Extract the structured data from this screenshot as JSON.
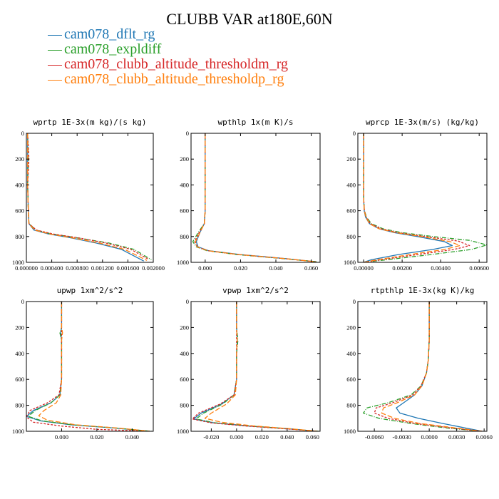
{
  "title": "CLUBB VAR at180E,60N",
  "legend": [
    {
      "name": "cam078_dflt_rg",
      "color": "#1f77b4"
    },
    {
      "name": "cam078_expldiff",
      "color": "#2ca02c"
    },
    {
      "name": "cam078_clubb_altitude_thresholdm_rg",
      "color": "#d62728"
    },
    {
      "name": "cam078_clubb_altitude_thresholdp_rg",
      "color": "#ff7f0e"
    }
  ],
  "chart_data": [
    {
      "type": "line",
      "title": "wprtp  1E-3x(m kg)/(s kg)",
      "xlim": [
        0.0,
        0.002
      ],
      "ylim": [
        1000,
        0
      ],
      "x_ticks": [
        0.0,
        0.0004,
        0.0008,
        0.0012,
        0.0016,
        0.002
      ],
      "x_tick_labels": [
        "0.000000",
        "0.000400",
        "0.000800",
        "0.001200",
        "0.001600",
        "0.002000"
      ],
      "y_ticks": [
        0,
        200,
        400,
        600,
        800,
        1000
      ],
      "y_tick_labels": [
        "0",
        "200",
        "400",
        "600",
        "800",
        "1000"
      ],
      "series": [
        {
          "name": "cam078_dflt_rg",
          "style": "solid",
          "x": [
            2e-05,
            2e-05,
            2e-05,
            3e-05,
            4e-05,
            0.00012,
            0.00035,
            0.0007,
            0.0011,
            0.0015,
            0.00185
          ],
          "y": [
            0,
            200,
            400,
            600,
            700,
            750,
            780,
            810,
            850,
            900,
            990
          ]
        },
        {
          "name": "cam078_expldiff",
          "style": "dashdot",
          "x": [
            2e-05,
            3e-05,
            2e-05,
            3e-05,
            4e-05,
            0.00015,
            0.0004,
            0.0008,
            0.0013,
            0.0017,
            0.00197
          ],
          "y": [
            0,
            200,
            400,
            600,
            700,
            750,
            780,
            810,
            850,
            900,
            980
          ]
        },
        {
          "name": "cam078_clubb_altitude_thresholdm_rg",
          "style": "dashed",
          "x": [
            2e-05,
            4e-05,
            2e-05,
            3e-05,
            4e-05,
            0.00016,
            0.00042,
            0.00082,
            0.00125,
            0.00165,
            0.00192
          ],
          "y": [
            0,
            200,
            400,
            600,
            700,
            750,
            780,
            810,
            850,
            900,
            975
          ]
        },
        {
          "name": "cam078_clubb_altitude_thresholdp_rg",
          "style": "longdash",
          "x": [
            2e-05,
            2e-05,
            2e-05,
            3e-05,
            4e-05,
            0.00013,
            0.00037,
            0.00072,
            0.00115,
            0.00155,
            0.0019
          ],
          "y": [
            0,
            200,
            400,
            600,
            700,
            750,
            780,
            810,
            850,
            900,
            985
          ]
        }
      ]
    },
    {
      "type": "line",
      "title": "wpthlp  1x(m K)/s",
      "xlim": [
        -0.008,
        0.065
      ],
      "ylim": [
        1000,
        0
      ],
      "x_ticks": [
        0.0,
        0.02,
        0.04,
        0.06
      ],
      "x_tick_labels": [
        "0.000",
        "0.020",
        "0.040",
        "0.060"
      ],
      "y_ticks": [
        0,
        200,
        400,
        600,
        800,
        1000
      ],
      "y_tick_labels": [
        "0",
        "200",
        "400",
        "600",
        "800",
        "1000"
      ],
      "series": [
        {
          "name": "cam078_dflt_rg",
          "style": "solid",
          "x": [
            0.0,
            0.0,
            0.0,
            0.0,
            -0.0005,
            -0.003,
            -0.005,
            -0.004,
            0.002,
            0.02,
            0.045,
            0.062
          ],
          "y": [
            0,
            200,
            400,
            600,
            700,
            770,
            840,
            880,
            910,
            940,
            970,
            995
          ]
        },
        {
          "name": "cam078_expldiff",
          "style": "dashdot",
          "x": [
            0.0,
            0.0,
            0.0,
            0.0,
            -0.0005,
            -0.004,
            -0.007,
            -0.005,
            0.001,
            0.018,
            0.043,
            0.063
          ],
          "y": [
            0,
            200,
            400,
            600,
            700,
            770,
            840,
            880,
            910,
            940,
            970,
            995
          ]
        },
        {
          "name": "cam078_clubb_altitude_thresholdm_rg",
          "style": "dashed",
          "x": [
            0.0,
            0.0,
            0.0,
            0.0,
            -0.0005,
            -0.0035,
            -0.006,
            -0.0045,
            0.0015,
            0.019,
            0.044,
            0.0625
          ],
          "y": [
            0,
            200,
            400,
            600,
            700,
            770,
            840,
            880,
            910,
            940,
            970,
            995
          ]
        },
        {
          "name": "cam078_clubb_altitude_thresholdp_rg",
          "style": "longdash",
          "x": [
            0.0,
            0.0,
            0.0,
            0.0,
            -0.0005,
            -0.003,
            -0.0055,
            -0.0045,
            0.0015,
            0.019,
            0.0445,
            0.062
          ],
          "y": [
            0,
            200,
            400,
            600,
            700,
            770,
            840,
            880,
            910,
            940,
            970,
            995
          ]
        }
      ]
    },
    {
      "type": "line",
      "title": "wprcp  1E-3x(m/s) (kg/kg)",
      "xlim": [
        -0.0003,
        0.0064
      ],
      "ylim": [
        1000,
        0
      ],
      "x_ticks": [
        0.0,
        0.002,
        0.004,
        0.006
      ],
      "x_tick_labels": [
        "0.00000",
        "0.00200",
        "0.00400",
        "0.00600"
      ],
      "y_ticks": [
        0,
        200,
        400,
        600,
        800,
        1000
      ],
      "y_tick_labels": [
        "0",
        "200",
        "400",
        "600",
        "800",
        "1000"
      ],
      "series": [
        {
          "name": "cam078_dflt_rg",
          "style": "solid",
          "x": [
            0.0,
            0.0,
            0.0,
            0.0,
            3e-05,
            0.0001,
            0.0003,
            0.0008,
            0.0016,
            0.0028,
            0.0042,
            0.0046,
            0.0036,
            0.0018,
            0.0004,
            0.0
          ],
          "y": [
            0,
            200,
            400,
            500,
            600,
            650,
            700,
            740,
            770,
            800,
            840,
            870,
            900,
            940,
            980,
            1000
          ]
        },
        {
          "name": "cam078_expldiff",
          "style": "dashdot",
          "x": [
            0.0,
            0.0,
            0.0,
            0.0,
            4e-05,
            0.00015,
            0.0004,
            0.001,
            0.002,
            0.0036,
            0.0055,
            0.0064,
            0.0056,
            0.0035,
            0.0012,
            0.0
          ],
          "y": [
            0,
            200,
            400,
            500,
            600,
            650,
            700,
            740,
            770,
            800,
            830,
            865,
            900,
            940,
            980,
            1000
          ]
        },
        {
          "name": "cam078_clubb_altitude_thresholdm_rg",
          "style": "dashed",
          "x": [
            0.0,
            0.0,
            0.0,
            0.0,
            4e-05,
            0.00013,
            0.00035,
            0.0009,
            0.0018,
            0.0032,
            0.0049,
            0.0055,
            0.0047,
            0.0028,
            0.0009,
            0.0
          ],
          "y": [
            0,
            200,
            400,
            500,
            600,
            650,
            700,
            740,
            770,
            800,
            835,
            870,
            900,
            940,
            980,
            1000
          ]
        },
        {
          "name": "cam078_clubb_altitude_thresholdp_rg",
          "style": "longdash",
          "x": [
            0.0,
            0.0,
            0.0,
            0.0,
            3e-05,
            0.00012,
            0.0003,
            0.0008,
            0.0017,
            0.003,
            0.0045,
            0.005,
            0.0042,
            0.0024,
            0.0007,
            0.0
          ],
          "y": [
            0,
            200,
            400,
            500,
            600,
            650,
            700,
            740,
            770,
            800,
            840,
            870,
            900,
            940,
            980,
            1000
          ]
        }
      ]
    },
    {
      "type": "line",
      "title": "upwp  1xm^2/s^2",
      "xlim": [
        -0.02,
        0.052
      ],
      "ylim": [
        1000,
        0
      ],
      "x_ticks": [
        0.0,
        0.02,
        0.04
      ],
      "x_tick_labels": [
        "0.000",
        "0.020",
        "0.040"
      ],
      "y_ticks": [
        0,
        200,
        400,
        600,
        800,
        1000
      ],
      "y_tick_labels": [
        "0",
        "200",
        "400",
        "600",
        "800",
        "1000"
      ],
      "series": [
        {
          "name": "cam078_dflt_rg",
          "style": "solid",
          "x": [
            0.0,
            0.0,
            -0.0005,
            0.0,
            0.0,
            -0.001,
            -0.006,
            -0.016,
            -0.02,
            -0.012,
            0.005,
            0.03,
            0.05
          ],
          "y": [
            0,
            200,
            240,
            300,
            600,
            720,
            780,
            840,
            885,
            920,
            950,
            975,
            1000
          ]
        },
        {
          "name": "cam078_expldiff",
          "style": "dashdot",
          "x": [
            0.0,
            0.0,
            -0.001,
            0.0,
            0.0,
            -0.001,
            -0.006,
            -0.015,
            -0.019,
            -0.011,
            0.006,
            0.031,
            0.051
          ],
          "y": [
            0,
            200,
            240,
            300,
            600,
            720,
            780,
            840,
            885,
            920,
            950,
            975,
            1000
          ]
        },
        {
          "name": "cam078_clubb_altitude_thresholdm_rg",
          "style": "dashed",
          "x": [
            0.0,
            0.0,
            0.0,
            0.0,
            0.0,
            -0.0015,
            -0.008,
            -0.018,
            -0.02,
            -0.016,
            0.0,
            0.02,
            0.05
          ],
          "y": [
            0,
            200,
            240,
            300,
            600,
            720,
            780,
            840,
            890,
            930,
            960,
            985,
            1000
          ]
        },
        {
          "name": "cam078_clubb_altitude_thresholdp_rg",
          "style": "longdash",
          "x": [
            0.0,
            0.0,
            0.0005,
            0.0,
            0.0,
            -0.0005,
            -0.003,
            -0.01,
            -0.013,
            -0.008,
            0.008,
            0.032,
            0.05
          ],
          "y": [
            0,
            200,
            240,
            300,
            600,
            720,
            780,
            840,
            880,
            915,
            950,
            975,
            1000
          ]
        }
      ]
    },
    {
      "type": "line",
      "title": "vpwp  1xm^2/s^2",
      "xlim": [
        -0.036,
        0.066
      ],
      "ylim": [
        1000,
        0
      ],
      "x_ticks": [
        -0.02,
        0.0,
        0.02,
        0.04,
        0.06
      ],
      "x_tick_labels": [
        "-0.020",
        "0.000",
        "0.020",
        "0.040",
        "0.060"
      ],
      "y_ticks": [
        0,
        200,
        400,
        600,
        800,
        1000
      ],
      "y_tick_labels": [
        "0",
        "200",
        "400",
        "600",
        "800",
        "1000"
      ],
      "series": [
        {
          "name": "cam078_dflt_rg",
          "style": "solid",
          "x": [
            0.0,
            0.0,
            0.0005,
            0.0,
            0.0,
            -0.002,
            -0.012,
            -0.028,
            -0.034,
            -0.018,
            0.01,
            0.04,
            0.064
          ],
          "y": [
            0,
            200,
            300,
            400,
            600,
            720,
            790,
            860,
            905,
            935,
            960,
            980,
            1000
          ]
        },
        {
          "name": "cam078_expldiff",
          "style": "dashdot",
          "x": [
            0.0,
            0.0,
            0.001,
            0.0,
            0.0,
            -0.002,
            -0.011,
            -0.026,
            -0.032,
            -0.017,
            0.011,
            0.041,
            0.065
          ],
          "y": [
            0,
            200,
            300,
            400,
            600,
            720,
            790,
            860,
            905,
            935,
            960,
            980,
            1000
          ]
        },
        {
          "name": "cam078_clubb_altitude_thresholdm_rg",
          "style": "dashed",
          "x": [
            0.0,
            0.0,
            0.0,
            0.0,
            0.0,
            -0.002,
            -0.013,
            -0.03,
            -0.035,
            -0.02,
            0.008,
            0.038,
            0.064
          ],
          "y": [
            0,
            200,
            300,
            400,
            600,
            720,
            790,
            860,
            905,
            935,
            960,
            980,
            1000
          ]
        },
        {
          "name": "cam078_clubb_altitude_thresholdp_rg",
          "style": "longdash",
          "x": [
            0.0,
            0.0,
            0.0005,
            0.0,
            0.0,
            -0.001,
            -0.008,
            -0.02,
            -0.025,
            -0.012,
            0.013,
            0.042,
            0.064
          ],
          "y": [
            0,
            200,
            300,
            400,
            600,
            720,
            790,
            860,
            900,
            930,
            958,
            980,
            1000
          ]
        }
      ]
    },
    {
      "type": "line",
      "title": "rtpthlp  1E-3x(kg K)/kg",
      "xlim": [
        -0.0078,
        0.0063
      ],
      "ylim": [
        1000,
        0
      ],
      "x_ticks": [
        -0.006,
        -0.003,
        0.0,
        0.003,
        0.006
      ],
      "x_tick_labels": [
        "-0.0060",
        "-0.0030",
        "0.0000",
        "0.0030",
        "0.0060"
      ],
      "y_ticks": [
        0,
        200,
        400,
        600,
        800,
        1000
      ],
      "y_tick_labels": [
        "0",
        "200",
        "400",
        "600",
        "800",
        "1000"
      ],
      "series": [
        {
          "name": "cam078_dflt_rg",
          "style": "solid",
          "x": [
            0.0,
            0.0,
            -0.0001,
            -0.0003,
            -0.0008,
            -0.0016,
            -0.0028,
            -0.0036,
            -0.0032,
            -0.0012,
            0.0015,
            0.004,
            0.0058
          ],
          "y": [
            0,
            300,
            450,
            550,
            650,
            720,
            780,
            820,
            860,
            900,
            940,
            975,
            1000
          ]
        },
        {
          "name": "cam078_expldiff",
          "style": "dashdot",
          "x": [
            0.0,
            0.0,
            -0.0001,
            -0.0003,
            -0.0009,
            -0.002,
            -0.0045,
            -0.0068,
            -0.0072,
            -0.0055,
            -0.002,
            0.002,
            0.0058
          ],
          "y": [
            0,
            300,
            450,
            550,
            650,
            720,
            780,
            820,
            860,
            900,
            940,
            975,
            1000
          ]
        },
        {
          "name": "cam078_clubb_altitude_thresholdm_rg",
          "style": "dashed",
          "x": [
            0.0,
            0.0,
            -0.0001,
            -0.0003,
            -0.0009,
            -0.0018,
            -0.004,
            -0.0058,
            -0.006,
            -0.0045,
            -0.0015,
            0.0025,
            0.0058
          ],
          "y": [
            0,
            300,
            450,
            550,
            650,
            720,
            780,
            820,
            860,
            900,
            940,
            975,
            1000
          ]
        },
        {
          "name": "cam078_clubb_altitude_thresholdp_rg",
          "style": "longdash",
          "x": [
            0.0,
            0.0,
            -0.0001,
            -0.0003,
            -0.0008,
            -0.0016,
            -0.0035,
            -0.005,
            -0.0052,
            -0.0038,
            -0.001,
            0.003,
            0.0058
          ],
          "y": [
            0,
            300,
            450,
            550,
            650,
            720,
            780,
            820,
            860,
            900,
            940,
            975,
            1000
          ]
        }
      ]
    }
  ]
}
